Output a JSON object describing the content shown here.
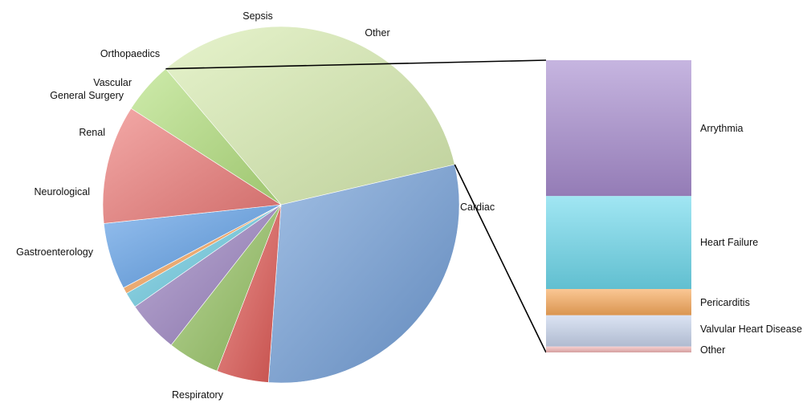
{
  "chart_data": [
    {
      "type": "pie",
      "title": "",
      "slices": [
        {
          "label": "Cardiac",
          "value": 34.5,
          "color": "#d8ecb0"
        },
        {
          "label": "Respiratory",
          "value": 31.5,
          "color": "#6f9cd6"
        },
        {
          "label": "Gastroenterology",
          "value": 5.0,
          "color": "#e05a55"
        },
        {
          "label": "Neurological",
          "value": 5.0,
          "color": "#95c262"
        },
        {
          "label": "Renal",
          "value": 5.0,
          "color": "#9a82c0"
        },
        {
          "label": "General Surgery",
          "value": 1.5,
          "color": "#6ccbe1"
        },
        {
          "label": "Vascular",
          "value": 0.6,
          "color": "#f7a45a"
        },
        {
          "label": "Orthopaedics",
          "value": 6.4,
          "color": "#5d9ee6"
        },
        {
          "label": "Sepsis",
          "value": 11.4,
          "color": "#ec7b78"
        },
        {
          "label": "Other",
          "value": 5.0,
          "color": "#b3e07e"
        }
      ]
    },
    {
      "type": "bar",
      "stacked": true,
      "breakdown_of": "Cardiac",
      "segments": [
        {
          "label": "Arrythmia",
          "value": 46.5,
          "color": "#a88dcf"
        },
        {
          "label": "Heart Failure",
          "value": 31.8,
          "color": "#6ed9ec"
        },
        {
          "label": "Pericarditis",
          "value": 9.0,
          "color": "#f8a95b"
        },
        {
          "label": "Valvular Heart Disease",
          "value": 10.7,
          "color": "#c8d4ec"
        },
        {
          "label": "Other",
          "value": 2.0,
          "color": "#f2b6b6"
        }
      ]
    }
  ]
}
